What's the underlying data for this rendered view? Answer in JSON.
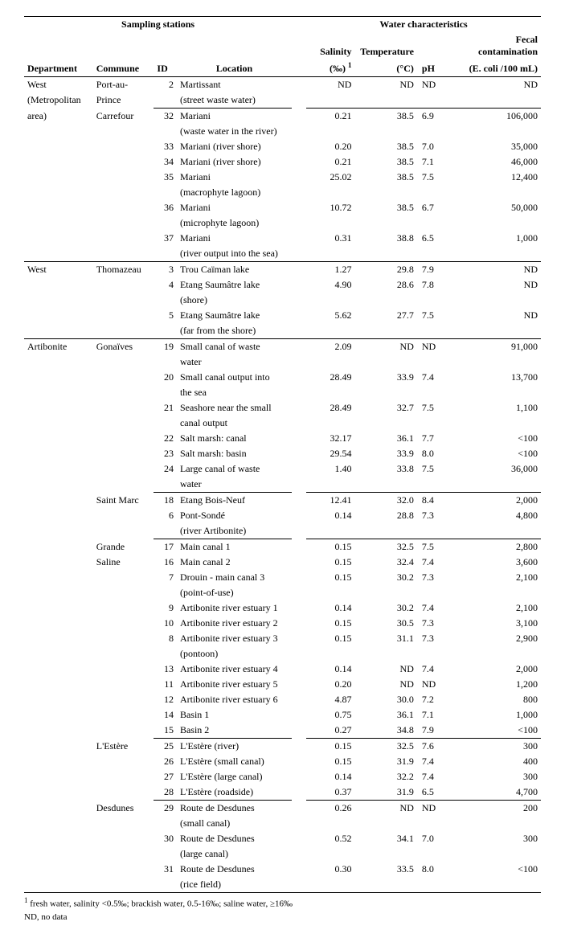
{
  "headers": {
    "sampling": "Sampling stations",
    "water": "Water characteristics",
    "department": "Department",
    "commune": "Commune",
    "id": "ID",
    "location": "Location",
    "salinity": "Salinity",
    "salinity_unit": "(‰)",
    "salinity_sup": "1",
    "temperature": "Temperature",
    "temperature_unit": "(°C)",
    "ph": "pH",
    "fecal": "Fecal contamination",
    "fecal_unit": "(E. coli /100 mL)"
  },
  "rows": [
    {
      "dep": "West",
      "com": "Port-au-",
      "id": "2",
      "loc": "Martissant",
      "sal": "ND",
      "tmp": "ND",
      "ph": "ND",
      "fec": "ND",
      "section": true
    },
    {
      "dep": "(Metropolitan",
      "com": "Prince",
      "id": "",
      "loc": "(street waste water)",
      "sal": "",
      "tmp": "",
      "ph": "",
      "fec": ""
    },
    {
      "dep": "area)",
      "com": "Carrefour",
      "id": "32",
      "loc": "Mariani",
      "sal": "0.21",
      "tmp": "38.5",
      "ph": "6.9",
      "fec": "106,000",
      "group": true
    },
    {
      "dep": "",
      "com": "",
      "id": "",
      "loc": "(waste water in the river)",
      "sal": "",
      "tmp": "",
      "ph": "",
      "fec": ""
    },
    {
      "dep": "",
      "com": "",
      "id": "33",
      "loc": "Mariani (river shore)",
      "sal": "0.20",
      "tmp": "38.5",
      "ph": "7.0",
      "fec": "35,000"
    },
    {
      "dep": "",
      "com": "",
      "id": "34",
      "loc": "Mariani (river shore)",
      "sal": "0.21",
      "tmp": "38.5",
      "ph": "7.1",
      "fec": "46,000"
    },
    {
      "dep": "",
      "com": "",
      "id": "35",
      "loc": "Mariani",
      "sal": "25.02",
      "tmp": "38.5",
      "ph": "7.5",
      "fec": "12,400"
    },
    {
      "dep": "",
      "com": "",
      "id": "",
      "loc": "(macrophyte lagoon)",
      "sal": "",
      "tmp": "",
      "ph": "",
      "fec": ""
    },
    {
      "dep": "",
      "com": "",
      "id": "36",
      "loc": "Mariani",
      "sal": "10.72",
      "tmp": "38.5",
      "ph": "6.7",
      "fec": "50,000"
    },
    {
      "dep": "",
      "com": "",
      "id": "",
      "loc": "(microphyte lagoon)",
      "sal": "",
      "tmp": "",
      "ph": "",
      "fec": ""
    },
    {
      "dep": "",
      "com": "",
      "id": "37",
      "loc": "Mariani",
      "sal": "0.31",
      "tmp": "38.8",
      "ph": "6.5",
      "fec": "1,000"
    },
    {
      "dep": "",
      "com": "",
      "id": "",
      "loc": "(river output into the sea)",
      "sal": "",
      "tmp": "",
      "ph": "",
      "fec": ""
    },
    {
      "dep": "West",
      "com": "Thomazeau",
      "id": "3",
      "loc": "Trou Caïman lake",
      "sal": "1.27",
      "tmp": "29.8",
      "ph": "7.9",
      "fec": "ND",
      "section": true
    },
    {
      "dep": "",
      "com": "",
      "id": "4",
      "loc": "Etang Saumâtre lake",
      "sal": "4.90",
      "tmp": "28.6",
      "ph": "7.8",
      "fec": "ND"
    },
    {
      "dep": "",
      "com": "",
      "id": "",
      "loc": "(shore)",
      "sal": "",
      "tmp": "",
      "ph": "",
      "fec": ""
    },
    {
      "dep": "",
      "com": "",
      "id": "5",
      "loc": "Etang Saumâtre lake",
      "sal": "5.62",
      "tmp": "27.7",
      "ph": "7.5",
      "fec": "ND"
    },
    {
      "dep": "",
      "com": "",
      "id": "",
      "loc": "(far from the shore)",
      "sal": "",
      "tmp": "",
      "ph": "",
      "fec": ""
    },
    {
      "dep": "Artibonite",
      "com": "Gonaïves",
      "id": "19",
      "loc": "Small canal of waste",
      "sal": "2.09",
      "tmp": "ND",
      "ph": "ND",
      "fec": "91,000",
      "section": true
    },
    {
      "dep": "",
      "com": "",
      "id": "",
      "loc": "water",
      "sal": "",
      "tmp": "",
      "ph": "",
      "fec": ""
    },
    {
      "dep": "",
      "com": "",
      "id": "20",
      "loc": "Small canal output into",
      "sal": "28.49",
      "tmp": "33.9",
      "ph": "7.4",
      "fec": "13,700"
    },
    {
      "dep": "",
      "com": "",
      "id": "",
      "loc": "the sea",
      "sal": "",
      "tmp": "",
      "ph": "",
      "fec": ""
    },
    {
      "dep": "",
      "com": "",
      "id": "21",
      "loc": "Seashore near the small",
      "sal": "28.49",
      "tmp": "32.7",
      "ph": "7.5",
      "fec": "1,100"
    },
    {
      "dep": "",
      "com": "",
      "id": "",
      "loc": "canal output",
      "sal": "",
      "tmp": "",
      "ph": "",
      "fec": ""
    },
    {
      "dep": "",
      "com": "",
      "id": "22",
      "loc": "Salt marsh: canal",
      "sal": "32.17",
      "tmp": "36.1",
      "ph": "7.7",
      "fec": "<100"
    },
    {
      "dep": "",
      "com": "",
      "id": "23",
      "loc": "Salt marsh: basin",
      "sal": "29.54",
      "tmp": "33.9",
      "ph": "8.0",
      "fec": "<100"
    },
    {
      "dep": "",
      "com": "",
      "id": "24",
      "loc": "Large canal of waste",
      "sal": "1.40",
      "tmp": "33.8",
      "ph": "7.5",
      "fec": "36,000"
    },
    {
      "dep": "",
      "com": "",
      "id": "",
      "loc": "water",
      "sal": "",
      "tmp": "",
      "ph": "",
      "fec": ""
    },
    {
      "dep": "",
      "com": "Saint Marc",
      "id": "18",
      "loc": "Etang Bois-Neuf",
      "sal": "12.41",
      "tmp": "32.0",
      "ph": "8.4",
      "fec": "2,000",
      "group": true
    },
    {
      "dep": "",
      "com": "",
      "id": "6",
      "loc": "Pont-Sondé",
      "sal": "0.14",
      "tmp": "28.8",
      "ph": "7.3",
      "fec": "4,800"
    },
    {
      "dep": "",
      "com": "",
      "id": "",
      "loc": "(river Artibonite)",
      "sal": "",
      "tmp": "",
      "ph": "",
      "fec": ""
    },
    {
      "dep": "",
      "com": "Grande",
      "id": "17",
      "loc": "Main canal 1",
      "sal": "0.15",
      "tmp": "32.5",
      "ph": "7.5",
      "fec": "2,800",
      "group": true
    },
    {
      "dep": "",
      "com": "Saline",
      "id": "16",
      "loc": "Main canal 2",
      "sal": "0.15",
      "tmp": "32.4",
      "ph": "7.4",
      "fec": "3,600"
    },
    {
      "dep": "",
      "com": "",
      "id": "7",
      "loc": "Drouin - main canal 3",
      "sal": "0.15",
      "tmp": "30.2",
      "ph": "7.3",
      "fec": "2,100"
    },
    {
      "dep": "",
      "com": "",
      "id": "",
      "loc": "(point-of-use)",
      "sal": "",
      "tmp": "",
      "ph": "",
      "fec": ""
    },
    {
      "dep": "",
      "com": "",
      "id": "9",
      "loc": "Artibonite river estuary 1",
      "sal": "0.14",
      "tmp": "30.2",
      "ph": "7.4",
      "fec": "2,100"
    },
    {
      "dep": "",
      "com": "",
      "id": "10",
      "loc": "Artibonite river estuary 2",
      "sal": "0.15",
      "tmp": "30.5",
      "ph": "7.3",
      "fec": "3,100"
    },
    {
      "dep": "",
      "com": "",
      "id": "8",
      "loc": "Artibonite river estuary 3",
      "sal": "0.15",
      "tmp": "31.1",
      "ph": "7.3",
      "fec": "2,900"
    },
    {
      "dep": "",
      "com": "",
      "id": "",
      "loc": "(pontoon)",
      "sal": "",
      "tmp": "",
      "ph": "",
      "fec": ""
    },
    {
      "dep": "",
      "com": "",
      "id": "13",
      "loc": "Artibonite river estuary 4",
      "sal": "0.14",
      "tmp": "ND",
      "ph": "7.4",
      "fec": "2,000"
    },
    {
      "dep": "",
      "com": "",
      "id": "11",
      "loc": "Artibonite river estuary 5",
      "sal": "0.20",
      "tmp": "ND",
      "ph": "ND",
      "fec": "1,200"
    },
    {
      "dep": "",
      "com": "",
      "id": "12",
      "loc": "Artibonite river estuary 6",
      "sal": "4.87",
      "tmp": "30.0",
      "ph": "7.2",
      "fec": "800"
    },
    {
      "dep": "",
      "com": "",
      "id": "14",
      "loc": "Basin 1",
      "sal": "0.75",
      "tmp": "36.1",
      "ph": "7.1",
      "fec": "1,000"
    },
    {
      "dep": "",
      "com": "",
      "id": "15",
      "loc": "Basin 2",
      "sal": "0.27",
      "tmp": "34.8",
      "ph": "7.9",
      "fec": "<100"
    },
    {
      "dep": "",
      "com": "L'Estère",
      "id": "25",
      "loc": "L'Estère (river)",
      "sal": "0.15",
      "tmp": "32.5",
      "ph": "7.6",
      "fec": "300",
      "group": true
    },
    {
      "dep": "",
      "com": "",
      "id": "26",
      "loc": "L'Estère (small canal)",
      "sal": "0.15",
      "tmp": "31.9",
      "ph": "7.4",
      "fec": "400"
    },
    {
      "dep": "",
      "com": "",
      "id": "27",
      "loc": "L'Estère (large canal)",
      "sal": "0.14",
      "tmp": "32.2",
      "ph": "7.4",
      "fec": "300"
    },
    {
      "dep": "",
      "com": "",
      "id": "28",
      "loc": "L'Estère (roadside)",
      "sal": "0.37",
      "tmp": "31.9",
      "ph": "6.5",
      "fec": "4,700"
    },
    {
      "dep": "",
      "com": "Desdunes",
      "id": "29",
      "loc": "Route de Desdunes",
      "sal": "0.26",
      "tmp": "ND",
      "ph": "ND",
      "fec": "200",
      "group": true
    },
    {
      "dep": "",
      "com": "",
      "id": "",
      "loc": "(small canal)",
      "sal": "",
      "tmp": "",
      "ph": "",
      "fec": ""
    },
    {
      "dep": "",
      "com": "",
      "id": "30",
      "loc": "Route de Desdunes",
      "sal": "0.52",
      "tmp": "34.1",
      "ph": "7.0",
      "fec": "300"
    },
    {
      "dep": "",
      "com": "",
      "id": "",
      "loc": "(large canal)",
      "sal": "",
      "tmp": "",
      "ph": "",
      "fec": ""
    },
    {
      "dep": "",
      "com": "",
      "id": "31",
      "loc": "Route de Desdunes",
      "sal": "0.30",
      "tmp": "33.5",
      "ph": "8.0",
      "fec": "<100"
    },
    {
      "dep": "",
      "com": "",
      "id": "",
      "loc": "(rice field)",
      "sal": "",
      "tmp": "",
      "ph": "",
      "fec": ""
    }
  ],
  "footnotes": {
    "f1_sup": "1",
    "f1": " fresh water, salinity <0.5‰; brackish water, 0.5-16‰; saline water, ≥16‰",
    "f2": "ND, no data"
  }
}
